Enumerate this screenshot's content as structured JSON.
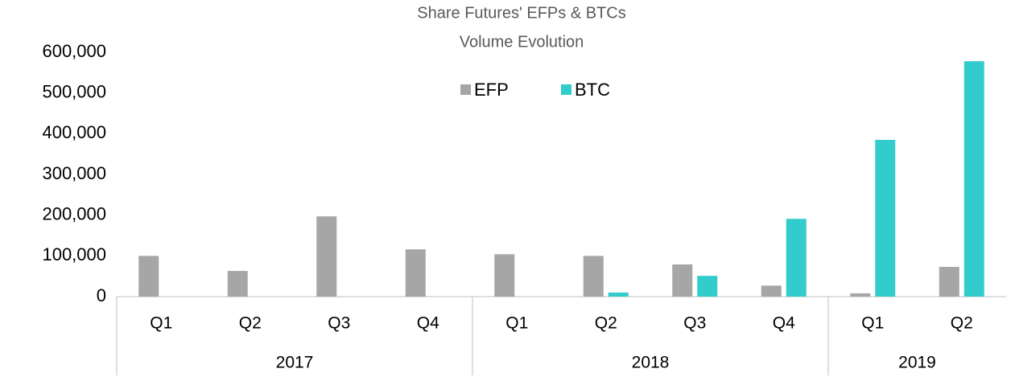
{
  "chart_data": {
    "type": "bar",
    "title": [
      "Share Futures' EFPs & BTCs",
      "Volume Evolution"
    ],
    "category_groups": [
      {
        "name": "2017",
        "categories": [
          "Q1",
          "Q2",
          "Q3",
          "Q4"
        ]
      },
      {
        "name": "2018",
        "categories": [
          "Q1",
          "Q2",
          "Q3",
          "Q4"
        ]
      },
      {
        "name": "2019",
        "categories": [
          "Q1",
          "Q2"
        ]
      }
    ],
    "series": [
      {
        "name": "EFP",
        "color": "#a6a6a6",
        "values": [
          100000,
          63000,
          197000,
          116000,
          104000,
          100000,
          79000,
          27000,
          8000,
          73000
        ]
      },
      {
        "name": "BTC",
        "color": "#33cccc",
        "values": [
          0,
          0,
          0,
          0,
          0,
          10000,
          51000,
          191000,
          385000,
          578000
        ]
      }
    ],
    "ylim": [
      0,
      600000
    ],
    "yticks": [
      0,
      {
        "value": 100000,
        "label": "100,000"
      },
      {
        "value": 200000,
        "label": "200,000"
      },
      {
        "value": 300000,
        "label": "300,000"
      },
      {
        "value": 400000,
        "label": "400,000"
      },
      {
        "value": 500000,
        "label": "500,000"
      },
      {
        "value": 600000,
        "label": "600,000"
      }
    ],
    "grid": false,
    "legend": "top"
  }
}
